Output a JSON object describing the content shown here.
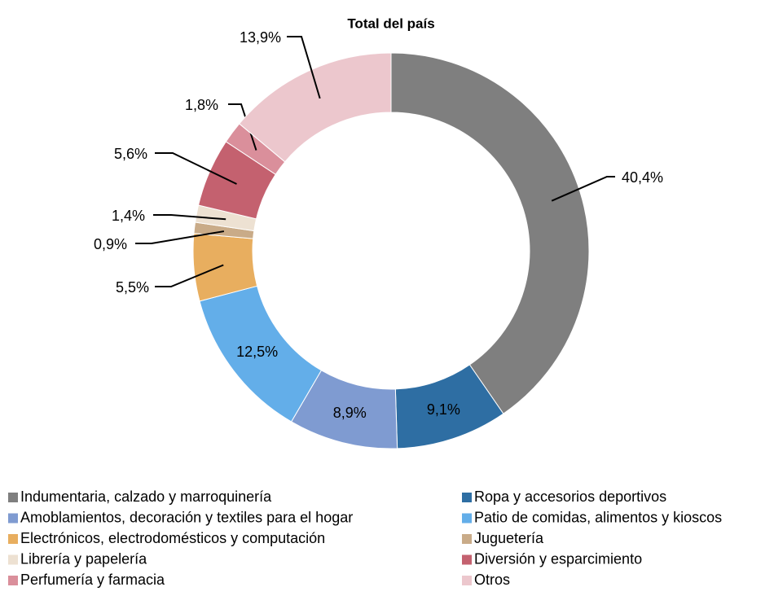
{
  "chart_data": {
    "type": "donut",
    "title": "Total del país",
    "categories": [
      "Indumentaria, calzado y marroquinería",
      "Ropa y accesorios deportivos",
      "Amoblamientos, decoración y textiles para el hogar",
      "Patio de comidas, alimentos y kioscos",
      "Electrónicos, electrodomésticos y computación",
      "Juguetería",
      "Librería y papelería",
      "Diversión y esparcimiento",
      "Perfumería y farmacia",
      "Otros"
    ],
    "values": [
      40.4,
      9.1,
      8.9,
      12.5,
      5.5,
      0.9,
      1.4,
      5.6,
      1.8,
      13.9
    ],
    "value_labels": [
      "40,4%",
      "9,1%",
      "8,9%",
      "12,5%",
      "5,5%",
      "0,9%",
      "1,4%",
      "5,6%",
      "1,8%",
      "13,9%"
    ],
    "colors": [
      "#7f7f7f",
      "#2e6ea3",
      "#7f9bd1",
      "#63aee9",
      "#e8ae5f",
      "#c9ab88",
      "#ede1d2",
      "#c4616f",
      "#da8f9b",
      "#ecc7cd"
    ],
    "legend": "bottom"
  }
}
